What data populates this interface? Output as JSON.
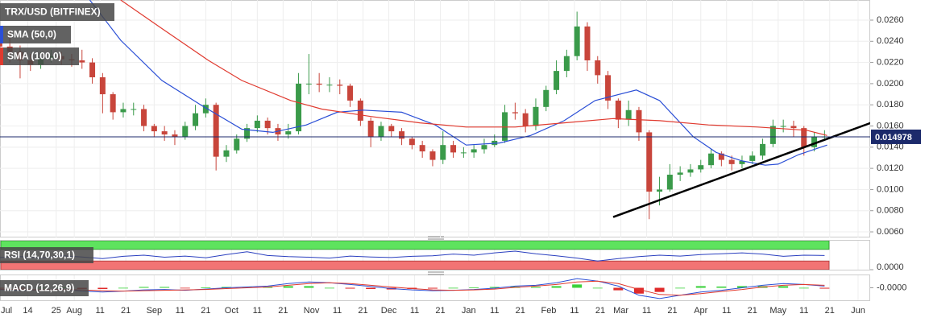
{
  "chart_data": [
    {
      "type": "candlestick",
      "title": "TRX/USD (BITFINEX)",
      "x": [
        2,
        6,
        10,
        14,
        18,
        22,
        26,
        30,
        34,
        38,
        42,
        46,
        50,
        54,
        58,
        62,
        66,
        70,
        74,
        78,
        82,
        86,
        90,
        94,
        98,
        102,
        106,
        110,
        114,
        118,
        122,
        126,
        130,
        134,
        138,
        142,
        146,
        150,
        154,
        158,
        162,
        166,
        170,
        174,
        178,
        182,
        186,
        190,
        194,
        198,
        202,
        206,
        210,
        214,
        218,
        222,
        226,
        230,
        234,
        238,
        242,
        246,
        250,
        254,
        258,
        262,
        266,
        270,
        274,
        278,
        282,
        286,
        290,
        294,
        298,
        302,
        306,
        310,
        314,
        318,
        322
      ],
      "open": [
        0.024,
        0.0235,
        0.023,
        0.0222,
        0.0218,
        0.0224,
        0.0226,
        0.0223,
        0.0222,
        0.022,
        0.0206,
        0.019,
        0.0173,
        0.0176,
        0.0176,
        0.016,
        0.0155,
        0.0152,
        0.015,
        0.016,
        0.0172,
        0.018,
        0.0131,
        0.0137,
        0.0148,
        0.0158,
        0.0165,
        0.0158,
        0.0152,
        0.0155,
        0.02,
        0.02,
        0.0199,
        0.0199,
        0.0198,
        0.0184,
        0.0165,
        0.015,
        0.016,
        0.0155,
        0.0148,
        0.0142,
        0.0136,
        0.0128,
        0.0142,
        0.0135,
        0.0135,
        0.0138,
        0.0142,
        0.0146,
        0.0173,
        0.0172,
        0.016,
        0.0178,
        0.0194,
        0.0212,
        0.0226,
        0.0254,
        0.0222,
        0.0208,
        0.0184,
        0.0166,
        0.0175,
        0.0154,
        0.0098,
        0.01,
        0.0114,
        0.0116,
        0.0119,
        0.0123,
        0.0134,
        0.0128,
        0.0124,
        0.0127,
        0.0132,
        0.0143,
        0.016,
        0.016,
        0.0158,
        0.014,
        0.015
      ],
      "high": [
        0.0262,
        0.025,
        0.0236,
        0.0228,
        0.023,
        0.0232,
        0.023,
        0.0228,
        0.0232,
        0.0224,
        0.021,
        0.0192,
        0.0182,
        0.0182,
        0.018,
        0.0162,
        0.016,
        0.0156,
        0.0164,
        0.018,
        0.0186,
        0.0182,
        0.0142,
        0.0152,
        0.0162,
        0.017,
        0.0168,
        0.0162,
        0.0162,
        0.021,
        0.0228,
        0.021,
        0.0206,
        0.0204,
        0.02,
        0.0186,
        0.0168,
        0.0164,
        0.0162,
        0.0158,
        0.015,
        0.0146,
        0.0138,
        0.0155,
        0.0146,
        0.014,
        0.0142,
        0.0148,
        0.0152,
        0.018,
        0.0182,
        0.0176,
        0.0186,
        0.0198,
        0.0222,
        0.0232,
        0.0268,
        0.0258,
        0.0226,
        0.0212,
        0.0186,
        0.0184,
        0.0178,
        0.0156,
        0.0112,
        0.0124,
        0.0122,
        0.0124,
        0.0128,
        0.0138,
        0.0136,
        0.0132,
        0.0132,
        0.0136,
        0.0148,
        0.0166,
        0.0166,
        0.0165,
        0.016,
        0.0154,
        0.0156
      ],
      "low": [
        0.0228,
        0.022,
        0.0205,
        0.0212,
        0.0214,
        0.022,
        0.0218,
        0.0216,
        0.0214,
        0.02,
        0.0172,
        0.0166,
        0.0168,
        0.017,
        0.0155,
        0.015,
        0.0146,
        0.0142,
        0.0147,
        0.0156,
        0.0168,
        0.0118,
        0.0126,
        0.0134,
        0.0145,
        0.0154,
        0.0152,
        0.0146,
        0.0148,
        0.0152,
        0.019,
        0.0192,
        0.0192,
        0.019,
        0.0178,
        0.016,
        0.014,
        0.0146,
        0.015,
        0.0142,
        0.0138,
        0.013,
        0.0122,
        0.0124,
        0.013,
        0.013,
        0.013,
        0.0134,
        0.014,
        0.0144,
        0.0166,
        0.0154,
        0.0156,
        0.0174,
        0.019,
        0.0206,
        0.0222,
        0.0212,
        0.02,
        0.0176,
        0.0158,
        0.016,
        0.0146,
        0.0072,
        0.0085,
        0.0098,
        0.0108,
        0.0112,
        0.0116,
        0.012,
        0.0122,
        0.0118,
        0.012,
        0.0124,
        0.0128,
        0.014,
        0.0154,
        0.015,
        0.0132,
        0.0136,
        0.0146
      ],
      "close": [
        0.0235,
        0.023,
        0.0222,
        0.0218,
        0.0224,
        0.0226,
        0.0223,
        0.0222,
        0.022,
        0.0206,
        0.019,
        0.0173,
        0.0176,
        0.0176,
        0.016,
        0.0155,
        0.0152,
        0.015,
        0.016,
        0.0172,
        0.018,
        0.0131,
        0.0137,
        0.0148,
        0.0158,
        0.0165,
        0.0158,
        0.0152,
        0.0155,
        0.02,
        0.02,
        0.0199,
        0.0199,
        0.0198,
        0.0184,
        0.0165,
        0.015,
        0.016,
        0.0155,
        0.0148,
        0.0142,
        0.0136,
        0.0128,
        0.0142,
        0.0135,
        0.0135,
        0.0138,
        0.0142,
        0.0146,
        0.0173,
        0.0172,
        0.016,
        0.0178,
        0.0194,
        0.0212,
        0.0226,
        0.0254,
        0.0222,
        0.0208,
        0.0184,
        0.0166,
        0.0175,
        0.0154,
        0.0098,
        0.01,
        0.0114,
        0.0116,
        0.0119,
        0.0123,
        0.0134,
        0.0128,
        0.0124,
        0.0127,
        0.0132,
        0.0143,
        0.016,
        0.016,
        0.0158,
        0.014,
        0.015,
        0.015
      ],
      "up_color": "#3a9a4a",
      "down_color": "#c8453b",
      "series": [
        {
          "name": "SMA (50,0)",
          "color": "#2b4fd6",
          "x": [
            37,
            49,
            65,
            80,
            96,
            108,
            121,
            133,
            143,
            158,
            171,
            183,
            196,
            208,
            221,
            233,
            249,
            258,
            271,
            280,
            290,
            299,
            304,
            312,
            323
          ],
          "values": [
            0.0279,
            0.0241,
            0.0203,
            0.018,
            0.0157,
            0.0154,
            0.0161,
            0.0173,
            0.0175,
            0.0173,
            0.0161,
            0.0142,
            0.0144,
            0.0151,
            0.0165,
            0.0184,
            0.0194,
            0.0184,
            0.015,
            0.0135,
            0.0127,
            0.0123,
            0.0124,
            0.0133,
            0.0142
          ]
        },
        {
          "name": "SMA (100,0)",
          "color": "#e03a2f",
          "x": [
            49,
            65,
            83,
            96,
            115,
            127,
            146,
            165,
            183,
            202,
            221,
            240,
            258,
            277,
            296,
            315,
            323
          ],
          "values": [
            0.0279,
            0.0252,
            0.0222,
            0.0203,
            0.0184,
            0.0176,
            0.0169,
            0.0163,
            0.0159,
            0.0159,
            0.0163,
            0.0167,
            0.0165,
            0.0161,
            0.0159,
            0.0156,
            0.0151
          ]
        }
      ],
      "trendline": {
        "x": [
          240,
          340
        ],
        "values": [
          0.0074,
          0.0163
        ],
        "color": "#000000"
      },
      "last_price": 0.014978,
      "last_price_color": "#1c2a6b",
      "xlim": [
        2.2,
        339.7
      ],
      "ylim": [
        0.00547,
        0.0279
      ],
      "xticks": [
        {
          "value": 0,
          "label": "Jul"
        },
        {
          "value": 13,
          "label": "14"
        },
        {
          "value": 24,
          "label": "25"
        },
        {
          "value": 31,
          "label": "Aug"
        },
        {
          "value": 41,
          "label": "11"
        },
        {
          "value": 51,
          "label": "21"
        },
        {
          "value": 62,
          "label": "Sep"
        },
        {
          "value": 72,
          "label": "11"
        },
        {
          "value": 82,
          "label": "21"
        },
        {
          "value": 92,
          "label": "Oct"
        },
        {
          "value": 102,
          "label": "11"
        },
        {
          "value": 112,
          "label": "21"
        },
        {
          "value": 123,
          "label": "Nov"
        },
        {
          "value": 133,
          "label": "11"
        },
        {
          "value": 143,
          "label": "21"
        },
        {
          "value": 153,
          "label": "Dec"
        },
        {
          "value": 163,
          "label": "11"
        },
        {
          "value": 173,
          "label": "21"
        },
        {
          "value": 184,
          "label": "Jan"
        },
        {
          "value": 194,
          "label": "11"
        },
        {
          "value": 204,
          "label": "21"
        },
        {
          "value": 215,
          "label": "Feb"
        },
        {
          "value": 225,
          "label": "11"
        },
        {
          "value": 235,
          "label": "21"
        },
        {
          "value": 243,
          "label": "Mar"
        },
        {
          "value": 253,
          "label": "11"
        },
        {
          "value": 263,
          "label": "21"
        },
        {
          "value": 274,
          "label": "Apr"
        },
        {
          "value": 284,
          "label": "11"
        },
        {
          "value": 294,
          "label": "21"
        },
        {
          "value": 304,
          "label": "May"
        },
        {
          "value": 314,
          "label": "11"
        },
        {
          "value": 324,
          "label": "21"
        },
        {
          "value": 335,
          "label": "Jun"
        }
      ],
      "yticks": [
        {
          "value": 0.026,
          "label": "0.0260"
        },
        {
          "value": 0.024,
          "label": "0.0240"
        },
        {
          "value": 0.022,
          "label": "0.0220"
        },
        {
          "value": 0.02,
          "label": "0.0200"
        },
        {
          "value": 0.018,
          "label": "0.0180"
        },
        {
          "value": 0.016,
          "label": "0.0160"
        },
        {
          "value": 0.014,
          "label": "0.0140"
        },
        {
          "value": 0.012,
          "label": "0.0120"
        },
        {
          "value": 0.01,
          "label": "0.0100"
        },
        {
          "value": 0.008,
          "label": "0.0080"
        },
        {
          "value": 0.006,
          "label": "0.0060"
        }
      ],
      "grid": true
    },
    {
      "type": "rsi",
      "title": "RSI (14,70,30,1)",
      "x": [
        2,
        10,
        18,
        26,
        34,
        42,
        50,
        58,
        66,
        74,
        82,
        90,
        98,
        106,
        114,
        122,
        130,
        138,
        146,
        154,
        162,
        170,
        178,
        186,
        194,
        202,
        210,
        218,
        226,
        234,
        242,
        250,
        258,
        266,
        274,
        282,
        290,
        298,
        306,
        314,
        322
      ],
      "values": [
        42,
        45,
        40,
        48,
        44,
        38,
        46,
        50,
        43,
        47,
        41,
        52,
        62,
        49,
        45,
        43,
        40,
        47,
        44,
        42,
        46,
        48,
        54,
        50,
        58,
        64,
        55,
        48,
        40,
        30,
        38,
        45,
        50,
        47,
        52,
        55,
        58,
        54,
        46,
        50,
        49
      ],
      "color": "#2a3fbf",
      "overbought": 70,
      "oversold": 30,
      "overbought_color": "#5ee35e",
      "oversold_color": "#f27474",
      "ylim": [
        0,
        100
      ],
      "yticks": [
        {
          "value": 0,
          "label": "0.0000"
        }
      ]
    },
    {
      "type": "macd",
      "title": "MACD (12,26,9)",
      "x": [
        2,
        10,
        18,
        26,
        34,
        42,
        50,
        58,
        66,
        74,
        82,
        90,
        98,
        106,
        114,
        122,
        130,
        138,
        146,
        154,
        162,
        170,
        178,
        186,
        194,
        202,
        210,
        218,
        226,
        234,
        242,
        250,
        258,
        266,
        274,
        282,
        290,
        298,
        306,
        314,
        322
      ],
      "series": [
        {
          "color": "#2b4fd6",
          "values": [
            -0.0004,
            -0.0006,
            -0.0005,
            -0.0003,
            -0.0008,
            -0.001,
            -0.0008,
            -0.0005,
            -0.0004,
            -0.0006,
            -0.0003,
            0.0,
            0.0002,
            0.0004,
            0.001,
            0.0014,
            0.0012,
            0.0008,
            0.0003,
            -0.0002,
            -0.0005,
            -0.0007,
            -0.0006,
            -0.0004,
            -0.0001,
            0.0004,
            0.0006,
            0.0012,
            0.0022,
            0.0016,
            0.0004,
            -0.0018,
            -0.0026,
            -0.0018,
            -0.001,
            -0.0006,
            0.0,
            0.0006,
            0.001,
            0.0008,
            0.0004
          ]
        },
        {
          "color": "#e03a2f",
          "values": [
            -0.0003,
            -0.0004,
            -0.0005,
            -0.0004,
            -0.0005,
            -0.0007,
            -0.0008,
            -0.0007,
            -0.0006,
            -0.0005,
            -0.0004,
            -0.0002,
            0.0,
            0.0002,
            0.0006,
            0.001,
            0.0012,
            0.001,
            0.0006,
            0.0002,
            -0.0002,
            -0.0005,
            -0.0006,
            -0.0005,
            -0.0003,
            0.0001,
            0.0004,
            0.0008,
            0.0014,
            0.0016,
            0.001,
            -0.0004,
            -0.0016,
            -0.0018,
            -0.0014,
            -0.0009,
            -0.0004,
            0.0002,
            0.0006,
            0.0008,
            0.0006
          ]
        }
      ],
      "histogram": [
        -0.0001,
        -0.0002,
        0.0,
        0.0001,
        -0.0003,
        -0.0003,
        0.0,
        0.0002,
        0.0002,
        -0.0001,
        0.0001,
        0.0002,
        0.0002,
        0.0002,
        0.0004,
        0.0004,
        0.0,
        -0.0002,
        -0.0003,
        -0.0004,
        -0.0003,
        -0.0002,
        0.0,
        0.0001,
        0.0002,
        0.0003,
        0.0002,
        0.0004,
        0.0008,
        0.0,
        -0.0006,
        -0.0014,
        -0.001,
        0.0,
        0.0004,
        0.0003,
        0.0004,
        0.0004,
        0.0004,
        0.0,
        -0.0002
      ],
      "positive_color": "#3ad13a",
      "negative_color": "#e02b2b",
      "ylim": [
        -0.003,
        0.003
      ],
      "yticks": [
        {
          "value": 0,
          "label": "-0.0000"
        }
      ]
    }
  ]
}
